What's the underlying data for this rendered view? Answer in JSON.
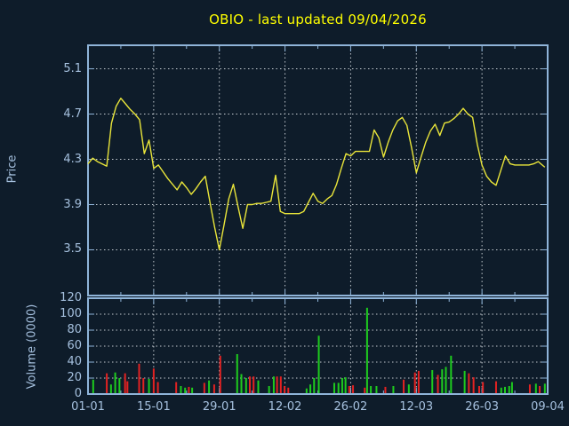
{
  "title": "OBIO - last updated 09/04/2026",
  "colors": {
    "background": "#0e1c2a",
    "frame": "#8fb4d9",
    "tick_text": "#a5c0de",
    "grid": "#c2c9cf",
    "title_text": "#ffff00",
    "price_line": "#e9e53a",
    "volume_up": "#1ecc1e",
    "volume_down": "#e32222"
  },
  "chart_data": [
    {
      "type": "line",
      "title": "OBIO - last updated 09/04/2026",
      "ylabel": "Price",
      "yticks": [
        3.5,
        3.9,
        4.3,
        4.7,
        5.1
      ],
      "ylim": [
        3.096,
        5.308
      ],
      "xlim_days": [
        0,
        98
      ],
      "x_tick_days": [
        0,
        14,
        28,
        42,
        56,
        70,
        84,
        98
      ],
      "x_tick_labels": [
        "01-01",
        "15-01",
        "29-01",
        "12-02",
        "26-02",
        "12-03",
        "26-03",
        "09-04"
      ],
      "x_minor_tick_days": [
        7,
        21,
        35,
        49,
        63,
        77,
        91
      ],
      "grid": true,
      "legend": "none",
      "series": [
        {
          "name": "price",
          "x": [
            0,
            1,
            2,
            3,
            4,
            5,
            6,
            7,
            8,
            9,
            10,
            11,
            12,
            13,
            14,
            15,
            16,
            17,
            18,
            19,
            20,
            21,
            22,
            23,
            24,
            25,
            26,
            27,
            28,
            29,
            30,
            31,
            32,
            33,
            34,
            35,
            36,
            37,
            38,
            39,
            40,
            41,
            42,
            43,
            44,
            45,
            46,
            47,
            48,
            49,
            50,
            51,
            52,
            53,
            54,
            55,
            56,
            57,
            58,
            59,
            60,
            61,
            62,
            63,
            64,
            65,
            66,
            67,
            68,
            69,
            70,
            71,
            72,
            73,
            74,
            75,
            76,
            77,
            78,
            79,
            80,
            81,
            82,
            83,
            84,
            85,
            86,
            87,
            88,
            89,
            90,
            91,
            92,
            93,
            94,
            95,
            96,
            97.4
          ],
          "y": [
            4.26,
            4.31,
            4.28,
            4.26,
            4.24,
            4.62,
            4.77,
            4.84,
            4.79,
            4.74,
            4.7,
            4.65,
            4.35,
            4.47,
            4.22,
            4.25,
            4.19,
            4.13,
            4.08,
            4.03,
            4.1,
            4.05,
            3.99,
            4.04,
            4.1,
            4.15,
            3.92,
            3.7,
            3.5,
            3.72,
            3.95,
            4.08,
            3.88,
            3.69,
            3.9,
            3.9,
            3.91,
            3.91,
            3.92,
            3.93,
            4.16,
            3.84,
            3.82,
            3.82,
            3.82,
            3.82,
            3.84,
            3.92,
            4.0,
            3.93,
            3.91,
            3.95,
            3.98,
            4.08,
            4.22,
            4.35,
            4.33,
            4.37,
            4.37,
            4.37,
            4.37,
            4.56,
            4.49,
            4.32,
            4.45,
            4.56,
            4.64,
            4.67,
            4.6,
            4.4,
            4.18,
            4.32,
            4.45,
            4.55,
            4.61,
            4.51,
            4.62,
            4.63,
            4.66,
            4.7,
            4.75,
            4.7,
            4.67,
            4.43,
            4.25,
            4.15,
            4.1,
            4.07,
            4.2,
            4.33,
            4.26,
            4.25,
            4.25,
            4.25,
            4.25,
            4.26,
            4.28,
            4.23
          ]
        }
      ]
    },
    {
      "type": "bar",
      "ylabel": "Volume (0000)",
      "yticks": [
        0,
        20,
        40,
        60,
        80,
        100,
        120
      ],
      "ylim": [
        0,
        120
      ],
      "xlim_days": [
        0,
        98
      ],
      "grid": true,
      "bars": [
        [
          1.1,
          18,
          "up"
        ],
        [
          4.0,
          26,
          "down"
        ],
        [
          4.9,
          12,
          "up"
        ],
        [
          5.8,
          27,
          "up"
        ],
        [
          6.7,
          20,
          "up"
        ],
        [
          7.9,
          26,
          "down"
        ],
        [
          8.4,
          16,
          "down"
        ],
        [
          10.9,
          38,
          "down"
        ],
        [
          11.8,
          20,
          "down"
        ],
        [
          13.0,
          19,
          "up"
        ],
        [
          14.0,
          32,
          "down"
        ],
        [
          14.9,
          15,
          "down"
        ],
        [
          18.8,
          15,
          "down"
        ],
        [
          19.8,
          10,
          "up"
        ],
        [
          20.7,
          8,
          "up"
        ],
        [
          21.5,
          9,
          "down"
        ],
        [
          22.2,
          8,
          "up"
        ],
        [
          24.8,
          14,
          "down"
        ],
        [
          25.8,
          17,
          "up"
        ],
        [
          26.9,
          12,
          "down"
        ],
        [
          28.2,
          48,
          "down"
        ],
        [
          31.8,
          50,
          "up"
        ],
        [
          32.7,
          25,
          "up"
        ],
        [
          33.7,
          20,
          "up"
        ],
        [
          34.5,
          22,
          "down"
        ],
        [
          35.3,
          22,
          "down"
        ],
        [
          36.3,
          17,
          "up"
        ],
        [
          38.6,
          10,
          "up"
        ],
        [
          39.6,
          22,
          "up"
        ],
        [
          40.3,
          22,
          "down"
        ],
        [
          41.1,
          22,
          "down"
        ],
        [
          41.9,
          10,
          "down"
        ],
        [
          42.7,
          8,
          "down"
        ],
        [
          46.6,
          7,
          "up"
        ],
        [
          47.4,
          12,
          "up"
        ],
        [
          48.2,
          20,
          "up"
        ],
        [
          49.2,
          73,
          "up"
        ],
        [
          52.5,
          14,
          "up"
        ],
        [
          53.4,
          14,
          "up"
        ],
        [
          54.2,
          20,
          "up"
        ],
        [
          54.9,
          21,
          "up"
        ],
        [
          55.7,
          10,
          "down"
        ],
        [
          56.5,
          11,
          "down"
        ],
        [
          59.0,
          8,
          "down"
        ],
        [
          59.5,
          108,
          "up"
        ],
        [
          60.3,
          10,
          "up"
        ],
        [
          61.5,
          10,
          "up"
        ],
        [
          63.4,
          9,
          "down"
        ],
        [
          65.1,
          10,
          "up"
        ],
        [
          67.3,
          18,
          "down"
        ],
        [
          68.4,
          12,
          "up"
        ],
        [
          69.7,
          27,
          "down"
        ],
        [
          70.5,
          29,
          "down"
        ],
        [
          73.4,
          30,
          "up"
        ],
        [
          74.6,
          24,
          "down"
        ],
        [
          75.5,
          31,
          "up"
        ],
        [
          76.3,
          34,
          "up"
        ],
        [
          77.4,
          48,
          "up"
        ],
        [
          80.3,
          29,
          "up"
        ],
        [
          81.2,
          26,
          "down"
        ],
        [
          82.2,
          21,
          "down"
        ],
        [
          83.4,
          10,
          "down"
        ],
        [
          84.2,
          15,
          "down"
        ],
        [
          87.0,
          16,
          "down"
        ],
        [
          88.1,
          8,
          "up"
        ],
        [
          88.9,
          9,
          "up"
        ],
        [
          89.8,
          10,
          "up"
        ],
        [
          90.4,
          15,
          "up"
        ],
        [
          94.2,
          12,
          "down"
        ],
        [
          95.5,
          13,
          "up"
        ],
        [
          96.3,
          10,
          "down"
        ],
        [
          97.4,
          13,
          "up"
        ]
      ]
    }
  ]
}
